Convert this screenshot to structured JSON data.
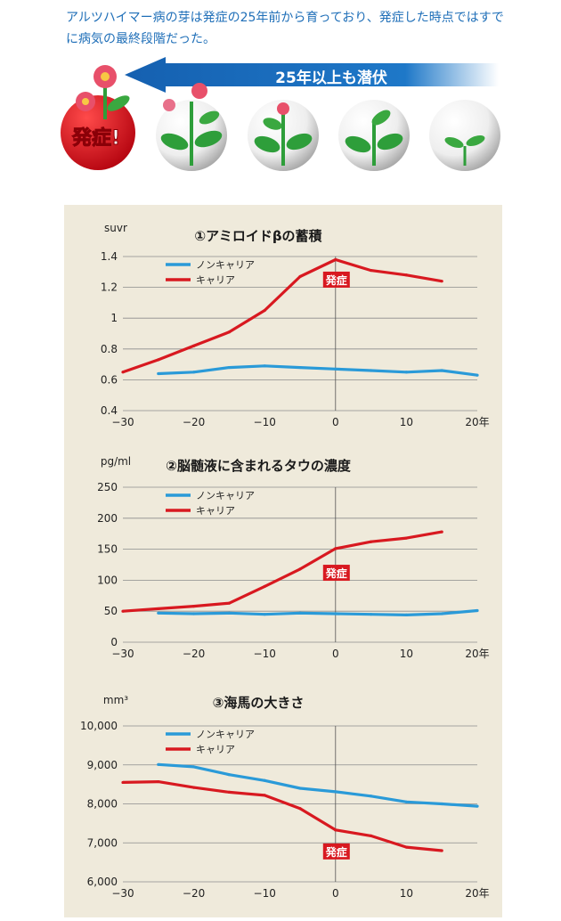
{
  "intro_text": "アルツハイマー病の芽は発症の25年前から育っており、発症した時点ではすでに病気の最終段階だった。",
  "banner": {
    "arrow_label": "25年以上も潜伏",
    "onset_label": "発症!",
    "colors": {
      "arrow": "#1560b0",
      "onset_badge": "#cc1122",
      "plant": "#2e9e3a",
      "flower": "#d94560"
    },
    "stages": [
      "tree-with-two-flowers",
      "plant-with-flower",
      "three-leaf-plant",
      "sprout"
    ]
  },
  "colors": {
    "carrier": "#d81920",
    "non_carrier": "#2a9ad8",
    "onset_tag": "#d81920",
    "panel": "#efeadb",
    "text_blue": "#1f6fb8"
  },
  "chart_data": [
    {
      "type": "line",
      "title": "①アミロイドβの蓄積",
      "ylabel": "suvr",
      "xlim": [
        -30,
        20
      ],
      "ylim": [
        0.4,
        1.4
      ],
      "x_ticks": [
        -30,
        -20,
        -10,
        0,
        10,
        20
      ],
      "x_tick_labels": [
        "−30",
        "−20",
        "−10",
        "0",
        "10",
        "20年"
      ],
      "y_ticks": [
        0.4,
        0.6,
        0.8,
        1.0,
        1.2,
        1.4
      ],
      "y_tick_labels": [
        "0.4",
        "0.6",
        "0.8",
        "1",
        "1.2",
        "1.4"
      ],
      "legend": [
        "ノンキャリア",
        "キャリア"
      ],
      "onset_label": "発症",
      "onset_x": 0,
      "series": [
        {
          "name": "ノンキャリア",
          "color_key": "non_carrier",
          "x": [
            -25,
            -20,
            -15,
            -10,
            -5,
            0,
            5,
            10,
            15,
            20
          ],
          "y": [
            0.64,
            0.65,
            0.68,
            0.69,
            0.68,
            0.67,
            0.66,
            0.65,
            0.66,
            0.63
          ]
        },
        {
          "name": "キャリア",
          "color_key": "carrier",
          "x": [
            -30,
            -25,
            -20,
            -15,
            -10,
            -5,
            0,
            5,
            10,
            15
          ],
          "y": [
            0.65,
            0.73,
            0.82,
            0.91,
            1.05,
            1.27,
            1.38,
            1.31,
            1.28,
            1.24
          ]
        }
      ]
    },
    {
      "type": "line",
      "title": "②脳髄液に含まれるタウの濃度",
      "ylabel": "pg/ml",
      "xlim": [
        -30,
        20
      ],
      "ylim": [
        0,
        250
      ],
      "x_ticks": [
        -30,
        -20,
        -10,
        0,
        10,
        20
      ],
      "x_tick_labels": [
        "−30",
        "−20",
        "−10",
        "0",
        "10",
        "20年"
      ],
      "y_ticks": [
        0,
        50,
        100,
        150,
        200,
        250
      ],
      "y_tick_labels": [
        "0",
        "50",
        "100",
        "150",
        "200",
        "250"
      ],
      "legend": [
        "ノンキャリア",
        "キャリア"
      ],
      "onset_label": "発症",
      "onset_x": 0,
      "series": [
        {
          "name": "ノンキャリア",
          "color_key": "non_carrier",
          "x": [
            -25,
            -20,
            -15,
            -10,
            -5,
            0,
            5,
            10,
            15,
            20
          ],
          "y": [
            47,
            46,
            47,
            45,
            47,
            46,
            45,
            44,
            46,
            51
          ]
        },
        {
          "name": "キャリア",
          "color_key": "carrier",
          "x": [
            -30,
            -25,
            -20,
            -15,
            -10,
            -5,
            0,
            5,
            10,
            15
          ],
          "y": [
            50,
            54,
            58,
            63,
            90,
            118,
            151,
            162,
            168,
            178
          ]
        }
      ]
    },
    {
      "type": "line",
      "title": "③海馬の大きさ",
      "ylabel": "mm³",
      "xlim": [
        -30,
        20
      ],
      "ylim": [
        6000,
        10000
      ],
      "x_ticks": [
        -30,
        -20,
        -10,
        0,
        10,
        20
      ],
      "x_tick_labels": [
        "−30",
        "−20",
        "−10",
        "0",
        "10",
        "20年"
      ],
      "y_ticks": [
        6000,
        7000,
        8000,
        9000,
        10000
      ],
      "y_tick_labels": [
        "6,000",
        "7,000",
        "8,000",
        "9,000",
        "10,000"
      ],
      "legend": [
        "ノンキャリア",
        "キャリア"
      ],
      "onset_label": "発症",
      "onset_x": 0,
      "series": [
        {
          "name": "ノンキャリア",
          "color_key": "non_carrier",
          "x": [
            -25,
            -20,
            -15,
            -10,
            -5,
            0,
            5,
            10,
            15,
            20
          ],
          "y": [
            9010,
            8950,
            8750,
            8600,
            8400,
            8310,
            8200,
            8050,
            8000,
            7940
          ]
        },
        {
          "name": "キャリア",
          "color_key": "carrier",
          "x": [
            -30,
            -25,
            -20,
            -15,
            -10,
            -5,
            0,
            5,
            10,
            15
          ],
          "y": [
            8550,
            8570,
            8420,
            8300,
            8220,
            7880,
            7330,
            7180,
            6890,
            6800
          ]
        }
      ]
    }
  ]
}
